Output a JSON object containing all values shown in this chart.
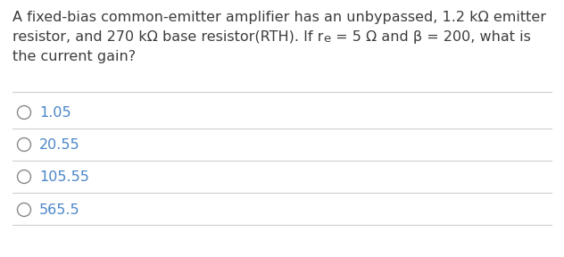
{
  "question_line1": "A fixed-bias common-emitter amplifier has an unbypassed, 1.2 kΩ emitter",
  "question_line2_prefix": "resistor, and 270 kΩ base resistor(RTH). If r",
  "question_line2_sub": "e",
  "question_line2_suffix": " = 5 Ω and β = 200, what is",
  "question_line3": "the current gain?",
  "options": [
    "1.05",
    "20.55",
    "105.55",
    "565.5"
  ],
  "bg_color": "#ffffff",
  "question_text_color": "#3d3d3d",
  "option_text_color": "#4a86c8",
  "line_color": "#d0d0d0",
  "circle_color": "#888888",
  "font_size": 11.5,
  "option_font_size": 11.5
}
